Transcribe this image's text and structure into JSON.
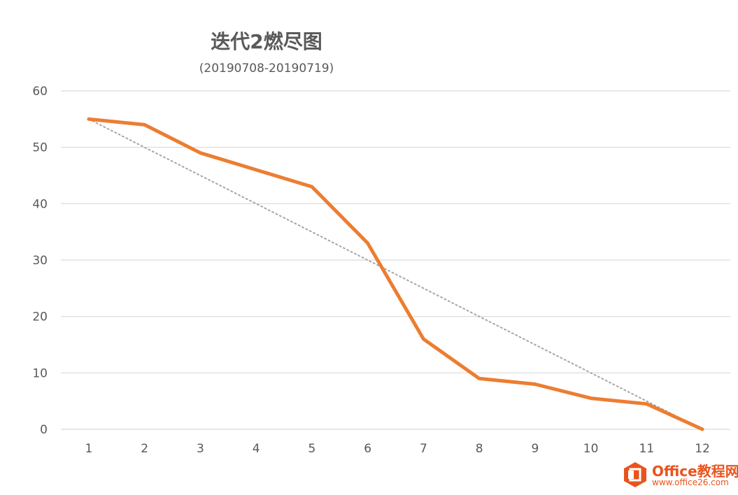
{
  "chart_data": {
    "type": "line",
    "title": "迭代2燃尽图",
    "subtitle": "(20190708-20190719)",
    "categories": [
      "1",
      "2",
      "3",
      "4",
      "5",
      "6",
      "7",
      "8",
      "9",
      "10",
      "11",
      "12"
    ],
    "series": [
      {
        "values": [
          55,
          54,
          49,
          46,
          43,
          33,
          16,
          9,
          8,
          5.5,
          4.5,
          0
        ],
        "color": "#ed7d31",
        "style": "solid"
      },
      {
        "values": [
          55,
          50,
          45,
          40,
          35,
          30,
          25,
          20,
          15,
          10,
          5,
          0
        ],
        "color": "#a6a6a6",
        "style": "dotted"
      }
    ],
    "y_ticks": [
      "0",
      "10",
      "20",
      "30",
      "40",
      "50",
      "60"
    ],
    "ylim": [
      0,
      60
    ],
    "grid": true,
    "legend": "none"
  },
  "watermark": {
    "name": "Office教程网",
    "url": "www.office26.com",
    "color": "#e8541e"
  }
}
